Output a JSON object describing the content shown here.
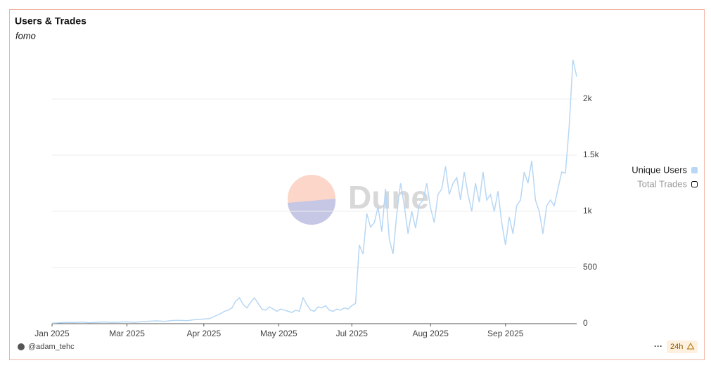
{
  "chart_data": {
    "type": "line",
    "title": "Users & Trades",
    "subtitle": "fomo",
    "watermark": "Dune",
    "author": "@adam_tehc",
    "refresh": "24h",
    "menu": "···",
    "xlim": [
      0,
      280
    ],
    "xticks": [
      {
        "value": 0,
        "label": "Jan 2025"
      },
      {
        "value": 40,
        "label": "Mar 2025"
      },
      {
        "value": 81,
        "label": "Apr 2025"
      },
      {
        "value": 121,
        "label": "May 2025"
      },
      {
        "value": 160,
        "label": "Jul 2025"
      },
      {
        "value": 202,
        "label": "Aug 2025"
      },
      {
        "value": 242,
        "label": "Sep 2025"
      }
    ],
    "ylim": [
      0,
      2500
    ],
    "yticks": [
      0,
      500,
      {
        "value": 1000,
        "label": "1k"
      },
      {
        "value": 1500,
        "label": "1.5k"
      },
      {
        "value": 2000,
        "label": "2k"
      }
    ],
    "grid": true,
    "x": [
      0,
      4,
      8,
      12,
      16,
      20,
      24,
      28,
      32,
      36,
      40,
      44,
      48,
      52,
      56,
      60,
      64,
      68,
      72,
      76,
      80,
      84,
      86,
      88,
      90,
      92,
      94,
      96,
      98,
      100,
      102,
      104,
      106,
      108,
      110,
      112,
      114,
      116,
      118,
      120,
      122,
      124,
      126,
      128,
      130,
      132,
      134,
      136,
      138,
      140,
      142,
      144,
      146,
      148,
      150,
      152,
      154,
      156,
      158,
      160,
      162,
      164,
      166,
      168,
      170,
      172,
      174,
      176,
      178,
      180,
      182,
      184,
      186,
      188,
      190,
      192,
      194,
      196,
      198,
      200,
      202,
      204,
      206,
      208,
      210,
      212,
      214,
      216,
      218,
      220,
      222,
      224,
      226,
      228,
      230,
      232,
      234,
      236,
      238,
      240,
      242,
      244,
      246,
      248,
      250,
      252,
      254,
      256,
      258,
      260,
      262,
      264,
      266,
      268,
      270,
      272,
      274,
      276,
      278,
      280
    ],
    "series": [
      {
        "name": "Unique Users",
        "color": "#b7d7f4",
        "values": [
          5,
          8,
          12,
          10,
          14,
          9,
          12,
          15,
          11,
          13,
          16,
          12,
          18,
          22,
          25,
          20,
          28,
          30,
          26,
          35,
          40,
          45,
          60,
          75,
          90,
          110,
          120,
          140,
          200,
          230,
          170,
          140,
          190,
          230,
          180,
          130,
          120,
          150,
          130,
          110,
          130,
          120,
          110,
          100,
          120,
          110,
          230,
          170,
          120,
          110,
          150,
          140,
          160,
          120,
          110,
          130,
          120,
          140,
          130,
          160,
          180,
          700,
          620,
          980,
          860,
          900,
          1040,
          820,
          1200,
          750,
          620,
          980,
          1250,
          1050,
          800,
          1000,
          850,
          1060,
          1100,
          1250,
          1030,
          900,
          1150,
          1200,
          1400,
          1150,
          1250,
          1300,
          1100,
          1350,
          1150,
          1000,
          1250,
          1080,
          1350,
          1100,
          1150,
          1000,
          1180,
          900,
          700,
          950,
          800,
          1050,
          1100,
          1350,
          1250,
          1450,
          1100,
          1000,
          800,
          1050,
          1100,
          1050,
          1200,
          1350,
          1340,
          1750,
          2350,
          2200
        ]
      }
    ],
    "hidden_series": [
      "Total Trades"
    ]
  }
}
